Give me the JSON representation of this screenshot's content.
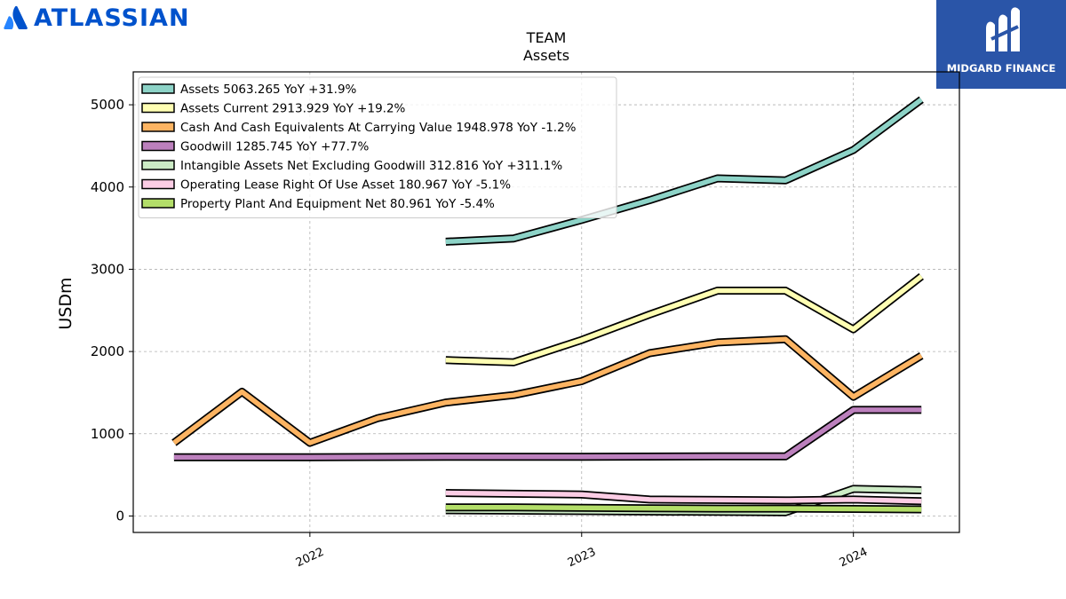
{
  "logos": {
    "left_brand": "ATLASSIAN",
    "right_brand": "MIDGARD FINANCE"
  },
  "chart_data": {
    "type": "line",
    "title": "TEAM",
    "subtitle": "Assets",
    "ylabel": "USDm",
    "xlabel": "",
    "ylim": [
      -200,
      5400
    ],
    "xlim": [
      2021.35,
      2024.39
    ],
    "yticks": [
      0,
      1000,
      2000,
      3000,
      4000,
      5000
    ],
    "xticks": [
      {
        "value": 2022.0,
        "label": "2022"
      },
      {
        "value": 2023.0,
        "label": "2023"
      },
      {
        "value": 2024.0,
        "label": "2024"
      }
    ],
    "grid": true,
    "legend_position": "top-left",
    "series": [
      {
        "name": "Assets",
        "legend": "Assets  5063.265 YoY +31.9%",
        "color": "#8dd3c7",
        "points": [
          [
            2022.5,
            3335
          ],
          [
            2022.75,
            3375
          ],
          [
            2023.0,
            3600
          ],
          [
            2023.25,
            3840
          ],
          [
            2023.5,
            4105
          ],
          [
            2023.75,
            4080
          ],
          [
            2024.0,
            4450
          ],
          [
            2024.25,
            5063
          ]
        ]
      },
      {
        "name": "Assets Current",
        "legend": "Assets Current  2913.929 YoY +19.2%",
        "color": "#ffffb3",
        "points": [
          [
            2022.5,
            1895
          ],
          [
            2022.75,
            1870
          ],
          [
            2023.0,
            2140
          ],
          [
            2023.25,
            2450
          ],
          [
            2023.5,
            2740
          ],
          [
            2023.75,
            2740
          ],
          [
            2024.0,
            2270
          ],
          [
            2024.25,
            2914
          ]
        ]
      },
      {
        "name": "Cash And Cash Equivalents At Carrying Value",
        "legend": "Cash And Cash Equivalents At Carrying Value  1948.978 YoY -1.2%",
        "color": "#fdb462",
        "points": [
          [
            2021.5,
            890
          ],
          [
            2021.75,
            1510
          ],
          [
            2022.0,
            890
          ],
          [
            2022.25,
            1190
          ],
          [
            2022.5,
            1380
          ],
          [
            2022.75,
            1470
          ],
          [
            2023.0,
            1640
          ],
          [
            2023.25,
            1980
          ],
          [
            2023.5,
            2110
          ],
          [
            2023.75,
            2150
          ],
          [
            2024.0,
            1450
          ],
          [
            2024.25,
            1949
          ]
        ]
      },
      {
        "name": "Goodwill",
        "legend": "Goodwill  1285.745 YoY +77.7%",
        "color": "#bc80bd",
        "points": [
          [
            2021.5,
            715
          ],
          [
            2022.0,
            715
          ],
          [
            2022.5,
            720
          ],
          [
            2023.0,
            720
          ],
          [
            2023.5,
            725
          ],
          [
            2023.75,
            725
          ],
          [
            2024.0,
            1290
          ],
          [
            2024.25,
            1290
          ]
        ]
      },
      {
        "name": "Intangible Assets Net Excluding Goodwill",
        "legend": "Intangible Assets Net Excluding Goodwill  312.816 YoY +311.1%",
        "color": "#ccebc5",
        "points": [
          [
            2022.5,
            70
          ],
          [
            2022.75,
            65
          ],
          [
            2023.0,
            60
          ],
          [
            2023.25,
            55
          ],
          [
            2023.5,
            50
          ],
          [
            2023.75,
            45
          ],
          [
            2024.0,
            330
          ],
          [
            2024.25,
            313
          ]
        ]
      },
      {
        "name": "Operating Lease Right Of Use Asset",
        "legend": "Operating Lease Right Of Use Asset  180.967 YoY -5.1%",
        "color": "#fccde5",
        "points": [
          [
            2022.5,
            280
          ],
          [
            2022.75,
            270
          ],
          [
            2023.0,
            262
          ],
          [
            2023.25,
            200
          ],
          [
            2023.5,
            195
          ],
          [
            2023.75,
            190
          ],
          [
            2024.0,
            200
          ],
          [
            2024.25,
            181
          ]
        ]
      },
      {
        "name": "Property Plant And Equipment Net",
        "legend": "Property Plant And Equipment Net  80.961 YoY -5.4%",
        "color": "#b3de69",
        "points": [
          [
            2022.5,
            105
          ],
          [
            2022.75,
            105
          ],
          [
            2023.0,
            100
          ],
          [
            2023.25,
            95
          ],
          [
            2023.5,
            90
          ],
          [
            2023.75,
            90
          ],
          [
            2024.0,
            86
          ],
          [
            2024.25,
            81
          ]
        ]
      }
    ]
  }
}
